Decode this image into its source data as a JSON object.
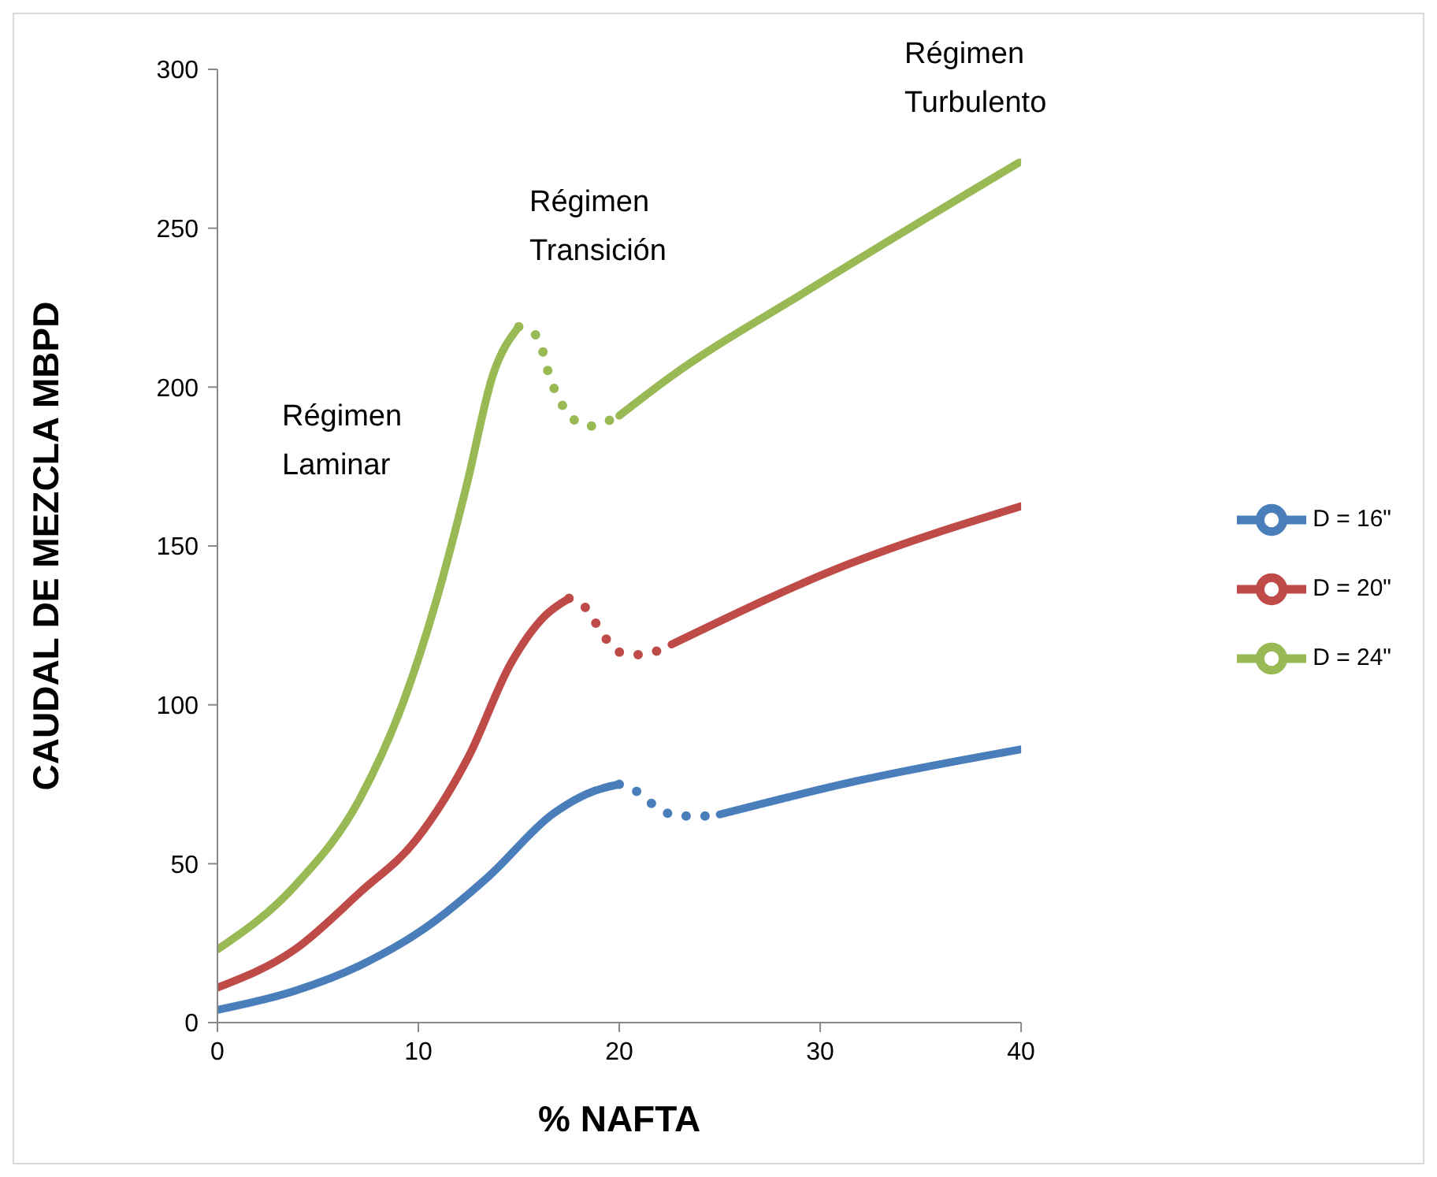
{
  "chart_data": {
    "type": "line",
    "xlabel": "% NAFTA",
    "ylabel": "CAUDAL DE MEZCLA    MBPD",
    "xlim": [
      0,
      40
    ],
    "xticks": [
      0,
      10,
      20,
      30,
      40
    ],
    "ylim": [
      0,
      300
    ],
    "yticks": [
      0,
      50,
      100,
      150,
      200,
      250,
      300
    ],
    "grid": false,
    "legend": "right",
    "marker": "none",
    "annotations": [
      "Régimen\nLaminar",
      "Régimen\nTransición",
      "Régimen\nTurbulento"
    ],
    "series": [
      {
        "name": "D = 16\"",
        "color": "#4a7ebb",
        "line_style": "solid",
        "x": [
          0,
          3.85,
          7.1,
          10.3,
          13.5,
          16.7,
          18.8,
          20
        ],
        "values": [
          4,
          10,
          18,
          29.6,
          46,
          65.7,
          73,
          75
        ]
      },
      {
        "color": "#4a7ebb",
        "line_style": "dotted",
        "x": [
          20,
          20.8,
          21.6,
          22.5,
          23.3,
          24.3,
          25
        ],
        "values": [
          75,
          73,
          69,
          65.7,
          65,
          65,
          65.5
        ]
      },
      {
        "color": "#4a7ebb",
        "line_style": "solid",
        "x": [
          25,
          31.8,
          40
        ],
        "values": [
          65.5,
          76,
          86
        ]
      },
      {
        "name": "D = 20\"",
        "color": "#be4b48",
        "line_style": "solid",
        "x": [
          0,
          3.85,
          7.1,
          9.9,
          12.5,
          14.6,
          16.3,
          17.5
        ],
        "values": [
          11,
          23,
          41,
          57.6,
          83.7,
          113,
          128,
          133.5
        ]
      },
      {
        "color": "#be4b48",
        "line_style": "dotted",
        "x": [
          17.5,
          18.4,
          19,
          20,
          21,
          21.9,
          22.6
        ],
        "values": [
          133.5,
          130,
          124,
          116.6,
          115.8,
          117,
          119
        ]
      },
      {
        "color": "#be4b48",
        "line_style": "solid",
        "x": [
          22.6,
          31.3,
          40
        ],
        "values": [
          119,
          144,
          162.5
        ]
      },
      {
        "name": "D = 24\"",
        "color": "#98b954",
        "line_style": "solid",
        "x": [
          0,
          3.85,
          7.1,
          9.2,
          10.9,
          12.4,
          13.7,
          15
        ],
        "values": [
          23,
          43,
          70.6,
          100,
          133,
          169,
          203.6,
          219
        ]
      },
      {
        "color": "#98b954",
        "line_style": "dotted",
        "x": [
          15,
          15.9,
          16.6,
          17.6,
          18.5,
          19.3,
          20
        ],
        "values": [
          219,
          216,
          202,
          190.6,
          187.7,
          189,
          191
        ]
      },
      {
        "color": "#98b954",
        "line_style": "solid",
        "x": [
          20,
          22.5,
          29.4,
          39.9
        ],
        "values": [
          191,
          203,
          230.5,
          270.7
        ]
      }
    ]
  }
}
